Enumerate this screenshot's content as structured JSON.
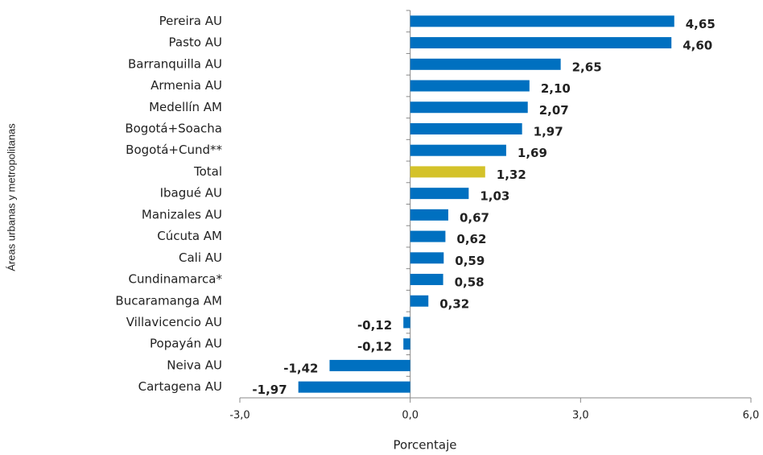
{
  "chart_data": {
    "type": "hbar",
    "y_axis_label": "Áreas urbanas y metropolitanas",
    "x_axis_label": "Porcentaje",
    "categories": [
      "Pereira AU",
      "Pasto AU",
      "Barranquilla AU",
      "Armenia AU",
      "Medellín AM",
      "Bogotá+Soacha",
      "Bogotá+Cund**",
      "Total",
      "Ibagué AU",
      "Manizales AU",
      "Cúcuta AM",
      "Cali AU",
      "Cundinamarca*",
      "Bucaramanga AM",
      "Villavicencio AU",
      "Popayán AU",
      "Neiva AU",
      "Cartagena AU"
    ],
    "values": [
      4.65,
      4.6,
      2.65,
      2.1,
      2.07,
      1.97,
      1.69,
      1.32,
      1.03,
      0.67,
      0.62,
      0.59,
      0.58,
      0.32,
      -0.12,
      -0.12,
      -1.42,
      -1.97
    ],
    "value_labels": [
      "4,65",
      "4,60",
      "2,65",
      "2,10",
      "2,07",
      "1,97",
      "1,69",
      "1,32",
      "1,03",
      "0,67",
      "0,62",
      "0,59",
      "0,58",
      "0,32",
      "-0,12",
      "-0,12",
      "-1,42",
      "-1,97"
    ],
    "colors": [
      "#0070c0",
      "#0070c0",
      "#0070c0",
      "#0070c0",
      "#0070c0",
      "#0070c0",
      "#0070c0",
      "#d4c22a",
      "#0070c0",
      "#0070c0",
      "#0070c0",
      "#0070c0",
      "#0070c0",
      "#0070c0",
      "#0070c0",
      "#0070c0",
      "#0070c0",
      "#0070c0"
    ],
    "xlim": [
      -3,
      6
    ],
    "xticks": [
      {
        "value": -3,
        "label": "-3,0"
      },
      {
        "value": 0,
        "label": "0,0"
      },
      {
        "value": 3,
        "label": "3,0"
      },
      {
        "value": 6,
        "label": "6,0"
      }
    ]
  }
}
